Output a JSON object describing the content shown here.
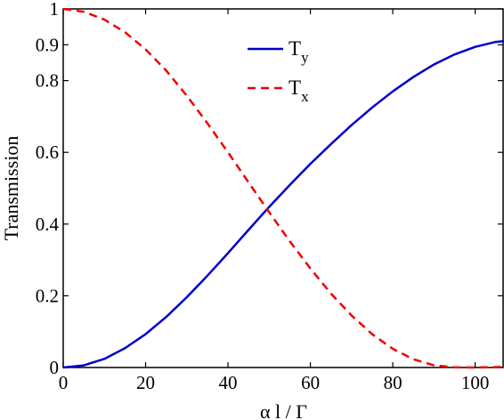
{
  "chart_data": {
    "type": "line",
    "title": "",
    "xlabel": "α l / Γ",
    "ylabel": "Transmission",
    "xlim": [
      0,
      107
    ],
    "ylim": [
      0,
      1
    ],
    "x_ticks": [
      0,
      20,
      40,
      60,
      80,
      100
    ],
    "x_tick_labels": [
      "0",
      "20",
      "40",
      "60",
      "80",
      "100"
    ],
    "y_ticks": [
      0,
      0.2,
      0.4,
      0.6,
      0.8,
      0.9,
      1
    ],
    "y_tick_labels": [
      "0",
      "0.2",
      "0.4",
      "0.6",
      "0.8",
      "0.9",
      "1"
    ],
    "grid": false,
    "legend_position": "top-center",
    "x": [
      0,
      5,
      10,
      15,
      20,
      25,
      30,
      35,
      40,
      45,
      50,
      55,
      60,
      65,
      70,
      75,
      80,
      85,
      90,
      95,
      100,
      105,
      107
    ],
    "series": [
      {
        "name": "Ty",
        "legend_main": "T",
        "legend_sub": "y",
        "color": "#0000cc",
        "dash": "solid",
        "values": [
          0.0,
          0.006,
          0.024,
          0.054,
          0.093,
          0.141,
          0.196,
          0.256,
          0.319,
          0.384,
          0.448,
          0.509,
          0.568,
          0.623,
          0.676,
          0.725,
          0.77,
          0.81,
          0.845,
          0.873,
          0.894,
          0.908,
          0.91
        ]
      },
      {
        "name": "Tx",
        "legend_main": "T",
        "legend_sub": "x",
        "color": "#ee0000",
        "dash": "dashed",
        "values": [
          1.0,
          0.992,
          0.97,
          0.935,
          0.887,
          0.828,
          0.758,
          0.681,
          0.6,
          0.516,
          0.433,
          0.352,
          0.276,
          0.206,
          0.145,
          0.093,
          0.052,
          0.023,
          0.006,
          0.0005,
          0.0,
          0.001,
          0.002
        ]
      }
    ]
  }
}
